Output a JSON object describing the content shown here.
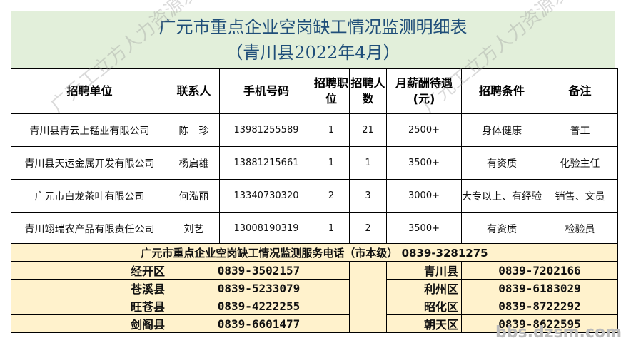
{
  "title": {
    "line1": "广元市重点企业空岗缺工情况监测明细表",
    "line2": "（青川县2022年4月）"
  },
  "headers": [
    "招聘单位",
    "联系人",
    "手机号码",
    "招聘职位",
    "招聘人数",
    "月薪酬待遇(元)",
    "招聘条件",
    "备注"
  ],
  "rows": [
    [
      "青川县青云上锰业有限公司",
      "陈　珍",
      "13981255589",
      "1",
      "21",
      "2500+",
      "身体健康",
      "普工"
    ],
    [
      "青川县天运金属开发有限公司",
      "杨启雄",
      "13881215661",
      "1",
      "1",
      "3500+",
      "有资质",
      "化验主任"
    ],
    [
      "广元市白龙茶叶有限公司",
      "何泓丽",
      "13340730320",
      "2",
      "3",
      "3000+",
      "大专以上、有经验",
      "销售、文员"
    ],
    [
      "青川翊瑞农产品有限责任公司",
      "刘艺",
      "13008190319",
      "1",
      "2",
      "3500+",
      "有资质",
      "检验员"
    ]
  ],
  "service": {
    "header": "广元市重点企业空岗缺工情况监测服务电话（市本级） 0839-3281275",
    "left": [
      [
        "经开区",
        "0839-3502157"
      ],
      [
        "苍溪县",
        "0839-5233079"
      ],
      [
        "旺苍县",
        "0839-4222255"
      ],
      [
        "剑阁县",
        "0839-6601477"
      ]
    ],
    "right": [
      [
        "青川县",
        "0839-7202166"
      ],
      [
        "利州区",
        "0839-6183029"
      ],
      [
        "昭化区",
        "0839-8722292"
      ],
      [
        "朝天区",
        "0839-8622595"
      ]
    ]
  },
  "watermark": {
    "text": "广元工立方人力资源发布",
    "site": "bbs.dzsm.com"
  },
  "colors": {
    "title_bg": "#e2efda",
    "title_text": "#1f4e79",
    "service_bg": "#fff2cc"
  }
}
